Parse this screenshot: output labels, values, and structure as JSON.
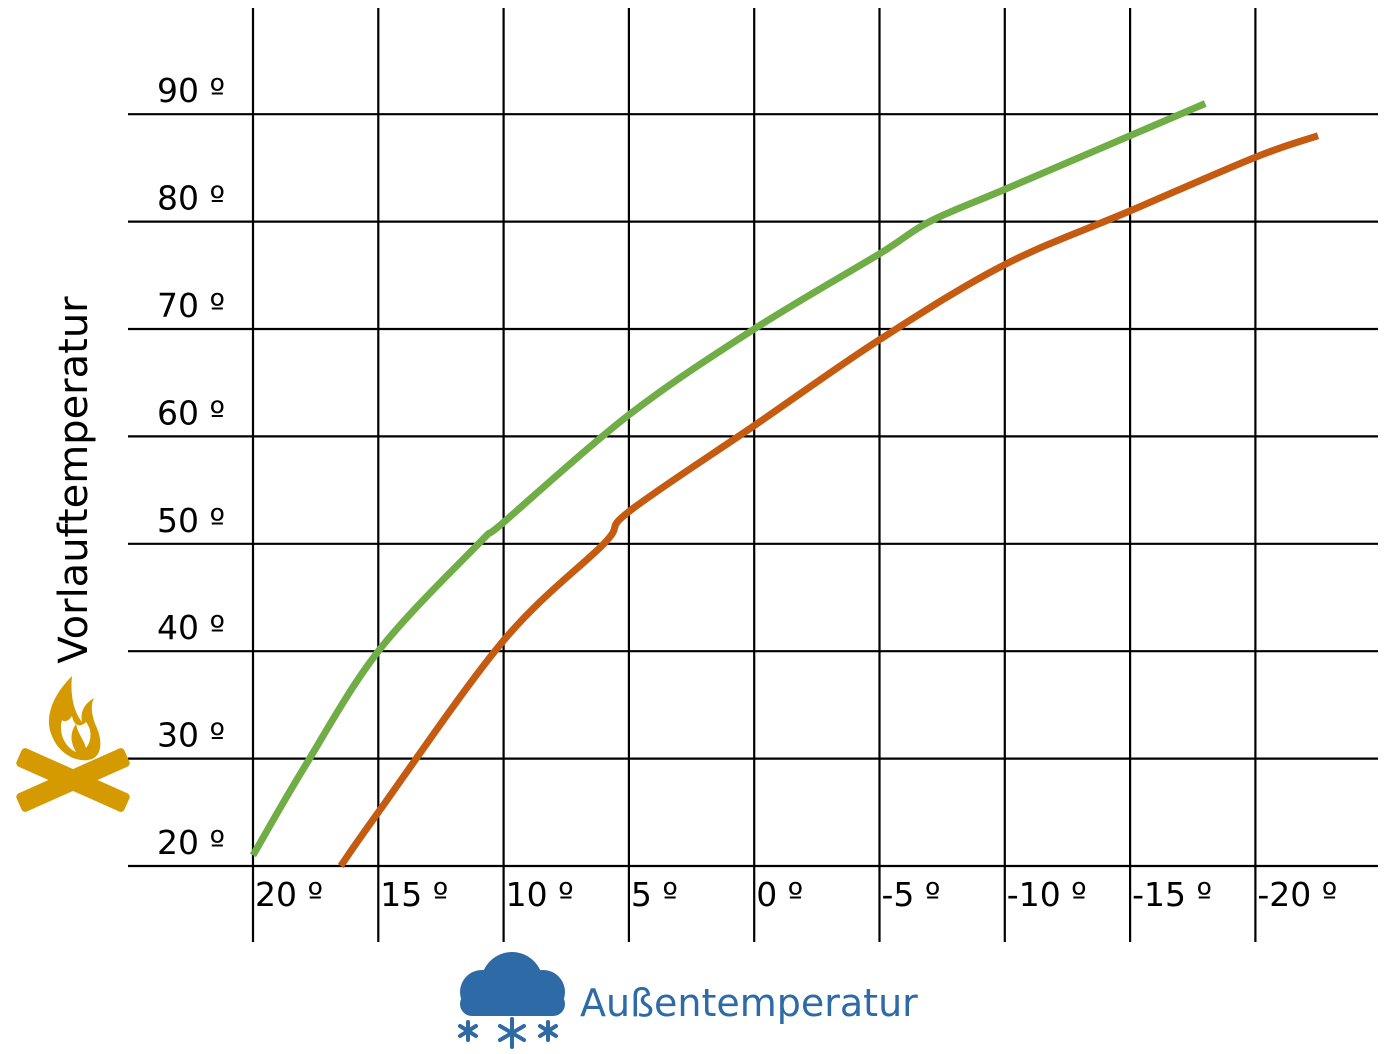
{
  "chart_data": {
    "type": "line",
    "xlabel": "Außentemperatur",
    "ylabel": "Vorlauftemperatur",
    "x_axis_reversed": true,
    "xlim": [
      20,
      -20
    ],
    "ylim": [
      20,
      90
    ],
    "x_ticks": [
      20,
      15,
      10,
      5,
      0,
      -5,
      -10,
      -15,
      -20
    ],
    "x_tick_labels": [
      "20 º",
      "15 º",
      "10 º",
      "5 º",
      "0 º",
      "-5 º",
      "-10 º",
      "-15 º",
      "-20 º"
    ],
    "y_ticks": [
      20,
      30,
      40,
      50,
      60,
      70,
      80,
      90
    ],
    "y_tick_labels": [
      "20 º",
      "30 º",
      "40 º",
      "50 º",
      "60 º",
      "70 º",
      "80 º",
      "90 º"
    ],
    "grid": true,
    "series": [
      {
        "color": "#70ad47",
        "x": [
          20,
          18,
          15,
          11,
          10,
          5,
          0,
          -5,
          -7,
          -10,
          -15,
          -18
        ],
        "y": [
          21,
          29,
          40,
          50,
          52,
          62,
          70,
          77,
          80,
          83,
          88,
          91
        ]
      },
      {
        "color": "#c55a11",
        "x": [
          16.5,
          15,
          10,
          6,
          5,
          0,
          -5,
          -10,
          -15,
          -20,
          -22.5
        ],
        "y": [
          20,
          25,
          41,
          50,
          53,
          61,
          69,
          76,
          81,
          86,
          88
        ]
      }
    ]
  },
  "icons": {
    "y_axis_icon": "campfire-icon",
    "y_axis_icon_color": "#d49a00",
    "x_axis_icon": "snow-cloud-icon",
    "x_axis_icon_color": "#2e6aa5"
  }
}
